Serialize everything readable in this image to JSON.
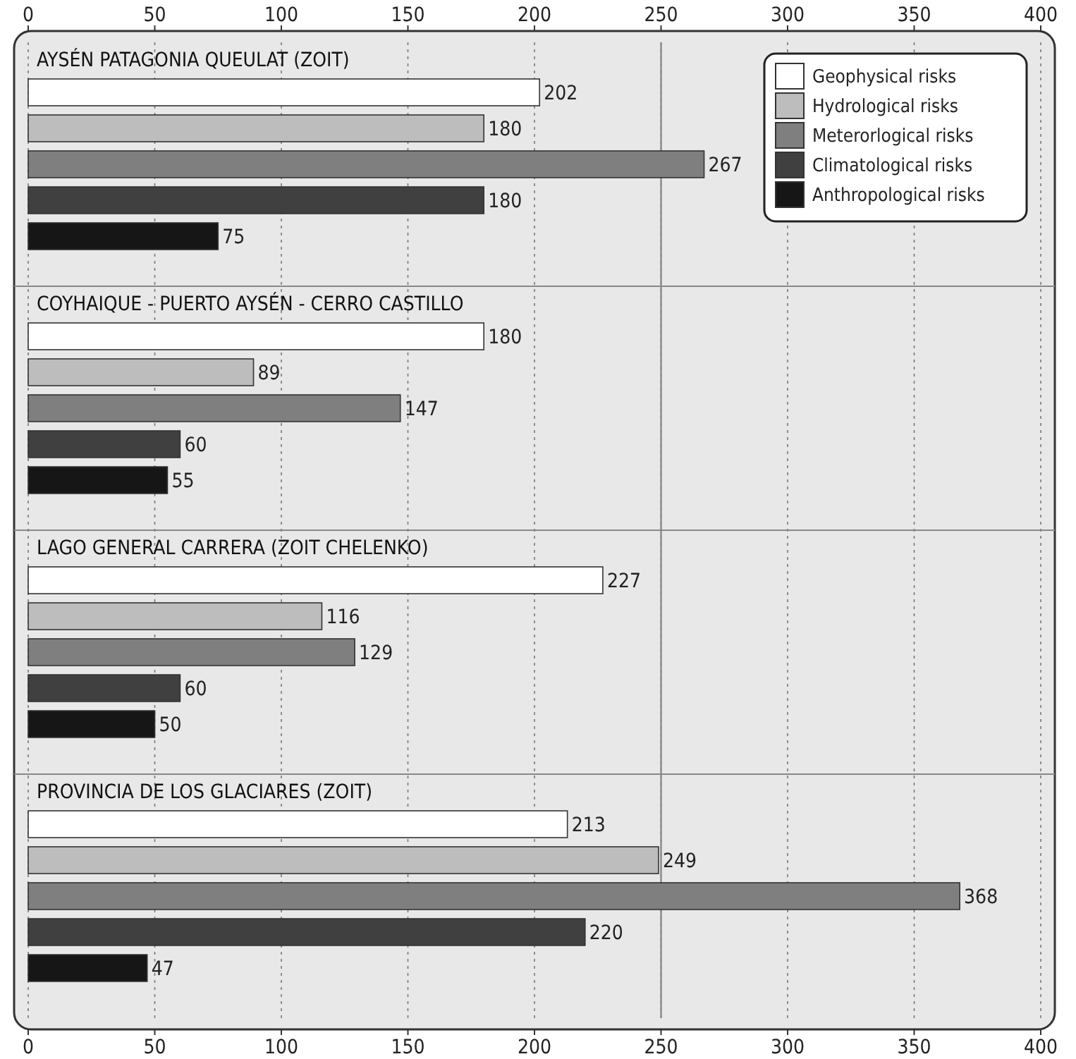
{
  "chart_data": {
    "type": "bar",
    "orientation": "horizontal",
    "categories": [
      "AYSÉN PATAGONIA QUEULAT (ZOIT)",
      "COYHAIQUE - PUERTO AYSÉN - CERRO CASTILLO",
      "LAGO GENERAL CARRERA (ZOIT CHELENKO)",
      "PROVINCIA DE LOS GLACIARES (ZOIT)"
    ],
    "series": [
      {
        "name": "Geophysical risks",
        "color": "#ffffff",
        "values": [
          202,
          180,
          227,
          213
        ]
      },
      {
        "name": "Hydrological risks",
        "color": "#bdbdbd",
        "values": [
          180,
          89,
          116,
          249
        ]
      },
      {
        "name": "Meterorlogical risks",
        "color": "#7f7f7f",
        "values": [
          267,
          147,
          129,
          368
        ]
      },
      {
        "name": "Climatological risks",
        "color": "#404040",
        "values": [
          180,
          60,
          60,
          220
        ]
      },
      {
        "name": "Anthropological risks",
        "color": "#161616",
        "values": [
          75,
          55,
          50,
          47
        ]
      }
    ],
    "xlim": [
      0,
      400
    ],
    "xticks": [
      0,
      50,
      100,
      150,
      200,
      250,
      300,
      350,
      400
    ],
    "x2lim": [
      0,
      400
    ],
    "x2ticks": [
      0,
      50,
      100,
      150,
      200,
      250,
      300,
      350,
      400
    ],
    "ref_lines": [
      {
        "axis": "x",
        "value": 250,
        "color": "#8a8a8a",
        "line_style": "solid"
      }
    ],
    "grid": "x",
    "line_style": "dotted",
    "legend": "top right",
    "data_labels": true
  }
}
